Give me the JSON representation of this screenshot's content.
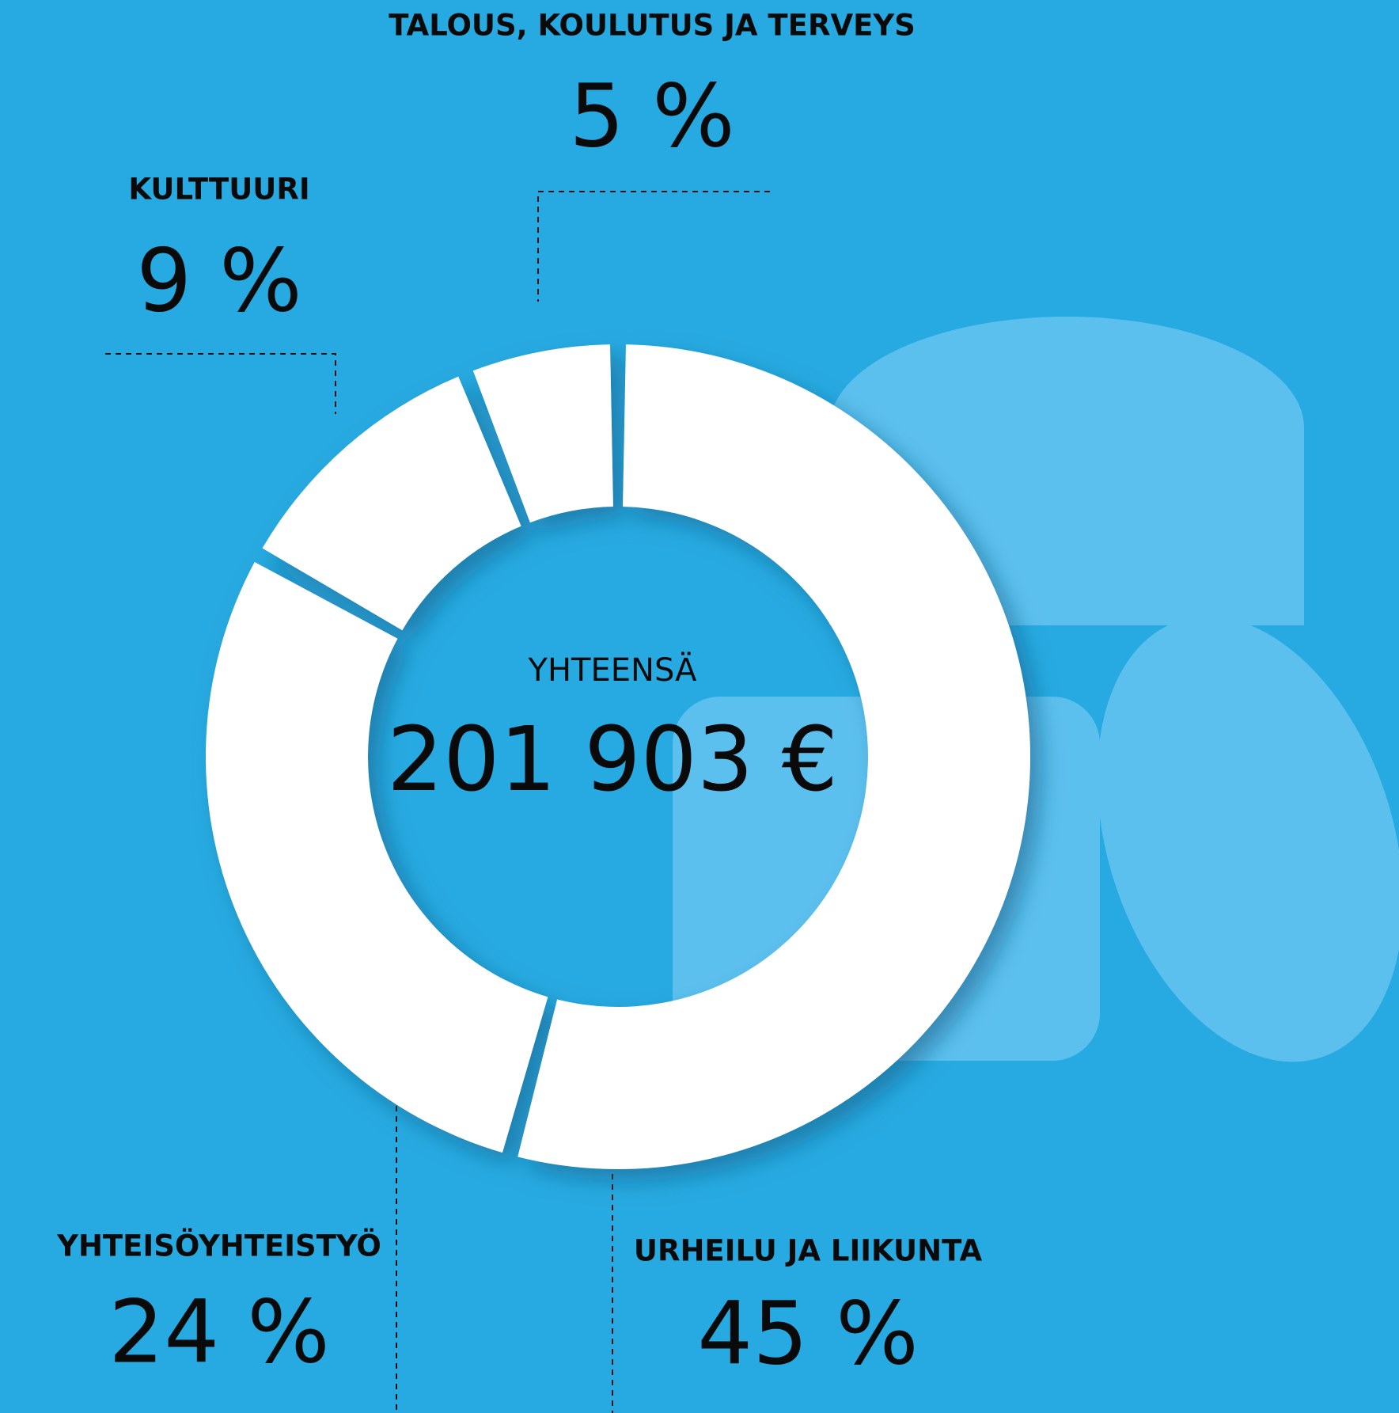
{
  "chart_data": {
    "type": "donut",
    "categories": [
      "URHEILU JA LIIKUNTA",
      "YHTEISÖYHTEISTYÖ",
      "KULTTUURI",
      "TALOUS, KOULUTUS JA TERVEYS"
    ],
    "values": [
      45,
      24,
      9,
      5
    ],
    "value_labels": [
      "45 %",
      "24 %",
      "9 %",
      "5 %"
    ],
    "color": "#ffffff",
    "center_label": "YHTEENSÄ",
    "center_value": "201 903 €"
  }
}
